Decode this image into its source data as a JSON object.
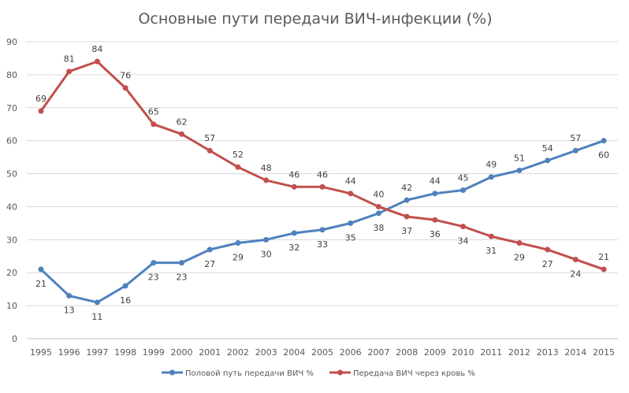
{
  "chart_data": {
    "type": "line",
    "title": "Основные пути передачи ВИЧ-инфекции  (%)",
    "xlabel": "",
    "ylabel": "",
    "ylim": [
      0,
      90
    ],
    "yticks": [
      0,
      10,
      20,
      30,
      40,
      50,
      60,
      70,
      80,
      90
    ],
    "grid": true,
    "legend_position": "bottom",
    "categories": [
      "1995",
      "1996",
      "1997",
      "1998",
      "1999",
      "2000",
      "2001",
      "2002",
      "2003",
      "2004",
      "2005",
      "2006",
      "2007",
      "2008",
      "2009",
      "2010",
      "2011",
      "2012",
      "2013",
      "2014",
      "2015"
    ],
    "series": [
      {
        "name": "Половой путь передачи ВИЧ %",
        "color": "#4f81bd",
        "values": [
          21,
          13,
          11,
          16,
          23,
          23,
          27,
          29,
          30,
          32,
          33,
          35,
          38,
          42,
          44,
          45,
          49,
          51,
          54,
          57,
          60
        ]
      },
      {
        "name": "Передача ВИЧ через кровь %",
        "color": "#c0504d",
        "values": [
          69,
          81,
          84,
          76,
          65,
          62,
          57,
          52,
          48,
          46,
          46,
          44,
          40,
          37,
          36,
          34,
          31,
          29,
          27,
          24,
          21
        ]
      }
    ]
  }
}
